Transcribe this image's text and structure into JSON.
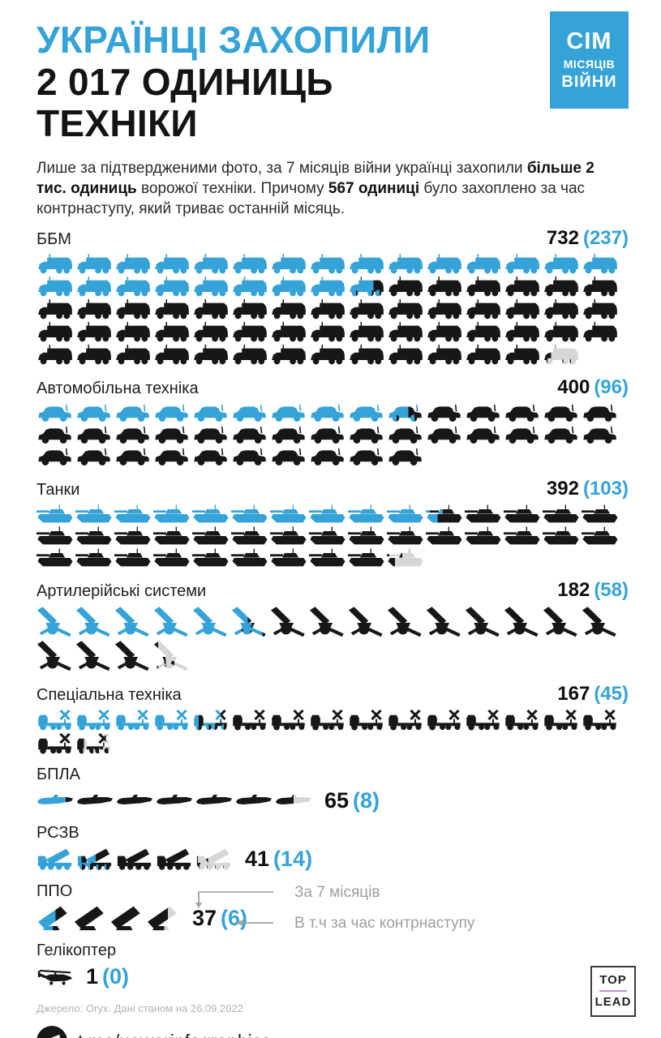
{
  "header": {
    "title_line1": "УКРАЇНЦІ ЗАХОПИЛИ",
    "title_line2": "2 017 ОДИНИЦЬ",
    "title_line3": "ТЕХНІКИ"
  },
  "badge": {
    "line1": "СІМ",
    "line2": "МІСЯЦІВ",
    "line3": "ВІЙНИ"
  },
  "intro": {
    "segments": [
      {
        "text": "Лише за підтвердженими фото, за 7 місяців війни українці захопили ",
        "bold": false
      },
      {
        "text": "більше 2 тис. одиниць",
        "bold": true
      },
      {
        "text": " ворожої техніки. Причому ",
        "bold": false
      },
      {
        "text": "567 одиниці",
        "bold": true
      },
      {
        "text": " було захоплено за час контрнаступу, який триває останній місяць.",
        "bold": false
      }
    ]
  },
  "chart_data": {
    "type": "pictogram",
    "title": "Українці захопили 2 017 одиниць техніки",
    "units_per_icon": 10,
    "total_captured": 2017,
    "captured_during_counteroffensive": 567,
    "legend": {
      "total_note": "За 7 місяців",
      "recent_note": "В т.ч за час контрнаступу"
    },
    "color_meaning": {
      "dark": "захоплено за 7 місяців війни",
      "blue": "в т.ч. за час контрнаступу",
      "gray": "незаповнена частина останньої піктограми"
    },
    "categories": [
      {
        "id": "bbm",
        "label": "ББМ",
        "icon": "apc",
        "icon_name": "armored-vehicle-icon",
        "total": 732,
        "recent": 237,
        "value": "732",
        "recent_value": "(237)",
        "value_inline": false
      },
      {
        "id": "auto",
        "label": "Автомобільна техніка",
        "icon": "car",
        "icon_name": "vehicle-icon",
        "total": 400,
        "recent": 96,
        "value": "400",
        "recent_value": "(96)",
        "value_inline": false
      },
      {
        "id": "tank",
        "label": "Танки",
        "icon": "tank",
        "icon_name": "tank-icon",
        "total": 392,
        "recent": 103,
        "value": "392",
        "recent_value": "(103)",
        "value_inline": false
      },
      {
        "id": "art",
        "label": "Артилерійські системи",
        "icon": "artillery",
        "icon_name": "artillery-icon",
        "total": 182,
        "recent": 58,
        "value": "182",
        "recent_value": "(58)",
        "value_inline": false
      },
      {
        "id": "spec",
        "label": "Спеціальна техніка",
        "icon": "special",
        "icon_name": "special-equipment-icon",
        "total": 167,
        "recent": 45,
        "value": "167",
        "recent_value": "(45)",
        "value_inline": false
      },
      {
        "id": "uav",
        "label": "БПЛА",
        "icon": "uav",
        "icon_name": "drone-icon",
        "total": 65,
        "recent": 8,
        "value": "65",
        "recent_value": "(8)",
        "value_inline": true
      },
      {
        "id": "mlrs",
        "label": "РСЗВ",
        "icon": "mlrs",
        "icon_name": "mlrs-icon",
        "total": 41,
        "recent": 14,
        "value": "41",
        "recent_value": "(14)",
        "value_inline": true
      },
      {
        "id": "aa",
        "label": "ППО",
        "icon": "aa",
        "icon_name": "air-defense-icon",
        "total": 37,
        "recent": 6,
        "value": "37",
        "recent_value": "(6)",
        "value_inline": true,
        "has_annotation": true
      },
      {
        "id": "heli",
        "label": "Гелікоптер",
        "icon": "heli",
        "icon_name": "helicopter-icon",
        "total": 1,
        "recent": 0,
        "value": "1",
        "recent_value": "(0)",
        "value_inline": true,
        "units_per_icon": 1
      }
    ]
  },
  "footer": {
    "source": "Джерело: Oryx. Дані станом на 26.09.2022",
    "telegram": "t.me/uawarinfographics",
    "logo_line1": "TOP",
    "logo_line2": "LEAD"
  },
  "colors": {
    "accent": "#35a3d8",
    "dark": "#171717",
    "empty": "#d6d6d6",
    "annotation": "#9e9e9e"
  }
}
